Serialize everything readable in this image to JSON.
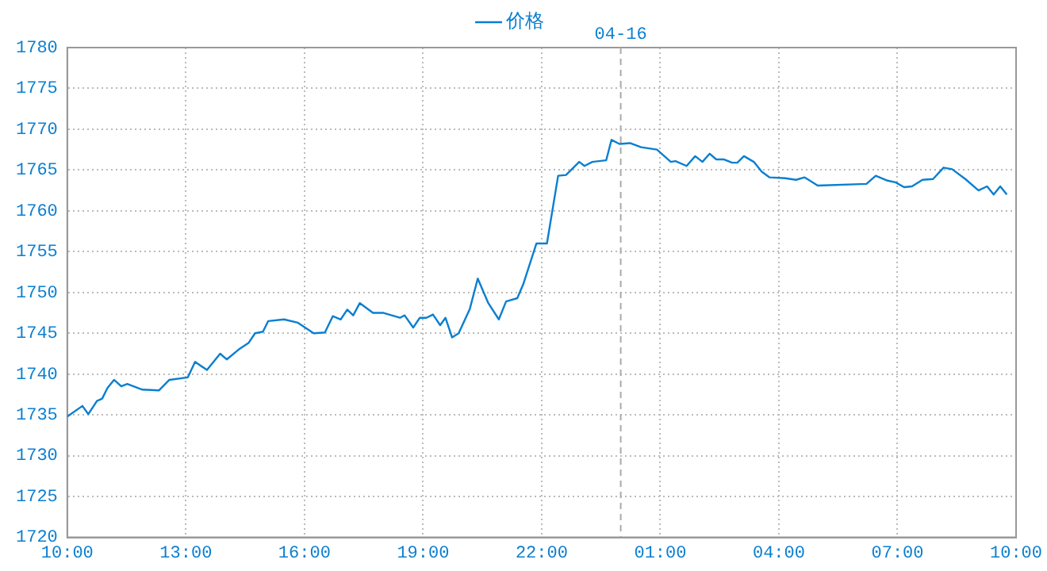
{
  "chart_data": {
    "type": "line",
    "legend": "top",
    "grid": true,
    "marker": "none",
    "line_style": "solid",
    "xlim": [
      "--04-15T10:00",
      "--04-16T10:00"
    ],
    "xticks": [
      {
        "value": "--04-15T10:00",
        "label": "10:00"
      },
      {
        "value": "--04-15T13:00",
        "label": "13:00"
      },
      {
        "value": "--04-15T16:00",
        "label": "16:00"
      },
      {
        "value": "--04-15T19:00",
        "label": "19:00"
      },
      {
        "value": "--04-15T22:00",
        "label": "22:00"
      },
      {
        "value": "--04-16T01:00",
        "label": "01:00"
      },
      {
        "value": "--04-16T04:00",
        "label": "04:00"
      },
      {
        "value": "--04-16T07:00",
        "label": "07:00"
      },
      {
        "value": "--04-16T10:00",
        "label": "10:00"
      }
    ],
    "ylim": [
      1720,
      1780
    ],
    "yticks": [
      1720,
      1725,
      1730,
      1735,
      1740,
      1745,
      1750,
      1755,
      1760,
      1765,
      1770,
      1775,
      1780
    ],
    "ref_lines": [
      {
        "axis": "x",
        "value": "--04-16T00:00",
        "label": "04-16",
        "color": "#aaaaaa",
        "line_style": "dashed"
      }
    ],
    "series": [
      {
        "name": "价格",
        "color": "#0a7fd0",
        "x": [
          "--04-15T10:00",
          "--04-15T10:23",
          "--04-15T10:32",
          "--04-15T10:45",
          "--04-15T10:53",
          "--04-15T11:01",
          "--04-15T11:11",
          "--04-15T11:22",
          "--04-15T11:31",
          "--04-15T11:54",
          "--04-15T12:19",
          "--04-15T12:35",
          "--04-15T13:03",
          "--04-15T13:14",
          "--04-15T13:32",
          "--04-15T13:52",
          "--04-15T14:02",
          "--04-15T14:20",
          "--04-15T14:35",
          "--04-15T14:45",
          "--04-15T14:57",
          "--04-15T15:05",
          "--04-15T15:29",
          "--04-15T15:50",
          "--04-15T16:14",
          "--04-15T16:31",
          "--04-15T16:43",
          "--04-15T16:55",
          "--04-15T17:05",
          "--04-15T17:14",
          "--04-15T17:24",
          "--04-15T17:44",
          "--04-15T18:00",
          "--04-15T18:25",
          "--04-15T18:32",
          "--04-15T18:45",
          "--04-15T18:55",
          "--04-15T19:05",
          "--04-15T19:15",
          "--04-15T19:26",
          "--04-15T19:34",
          "--04-15T19:44",
          "--04-15T19:54",
          "--04-15T20:11",
          "--04-15T20:23",
          "--04-15T20:39",
          "--04-15T20:55",
          "--04-15T21:06",
          "--04-15T21:23",
          "--04-15T21:32",
          "--04-15T21:52",
          "--04-15T22:08",
          "--04-15T22:25",
          "--04-15T22:37",
          "--04-15T22:57",
          "--04-15T23:05",
          "--04-15T23:17",
          "--04-15T23:38",
          "--04-15T23:46",
          "--04-15T23:58",
          "--04-16T00:14",
          "--04-16T00:31",
          "--04-16T00:55",
          "--04-16T01:16",
          "--04-16T01:23",
          "--04-16T01:40",
          "--04-16T01:53",
          "--04-16T02:04",
          "--04-16T02:15",
          "--04-16T02:25",
          "--04-16T02:37",
          "--04-16T02:49",
          "--04-16T02:57",
          "--04-16T03:07",
          "--04-16T03:22",
          "--04-16T03:34",
          "--04-16T03:46",
          "--04-16T04:10",
          "--04-16T04:26",
          "--04-16T04:39",
          "--04-16T04:59",
          "--04-16T06:13",
          "--04-16T06:27",
          "--04-16T06:45",
          "--04-16T06:57",
          "--04-16T07:10",
          "--04-16T07:22",
          "--04-16T07:38",
          "--04-16T07:54",
          "--04-16T08:10",
          "--04-16T08:23",
          "--04-16T08:43",
          "--04-16T09:03",
          "--04-16T09:16",
          "--04-16T09:26",
          "--04-16T09:36",
          "--04-16T09:46"
        ],
        "values": [
          1734.8,
          1736.1,
          1735.1,
          1736.7,
          1737.0,
          1738.3,
          1739.3,
          1738.5,
          1738.8,
          1738.1,
          1738.0,
          1739.3,
          1739.6,
          1741.5,
          1740.5,
          1742.5,
          1741.8,
          1743.0,
          1743.8,
          1745.0,
          1745.2,
          1746.5,
          1746.7,
          1746.3,
          1745.0,
          1745.1,
          1747.1,
          1746.7,
          1747.9,
          1747.2,
          1748.7,
          1747.5,
          1747.5,
          1746.9,
          1747.2,
          1745.7,
          1746.9,
          1746.9,
          1747.3,
          1746.0,
          1746.9,
          1744.5,
          1745.0,
          1748.0,
          1751.7,
          1748.7,
          1746.7,
          1748.9,
          1749.3,
          1751.0,
          1756.0,
          1756.0,
          1764.3,
          1764.4,
          1766.0,
          1765.5,
          1766.0,
          1766.2,
          1768.7,
          1768.2,
          1768.3,
          1767.8,
          1767.5,
          1766.0,
          1766.1,
          1765.5,
          1766.7,
          1766.0,
          1767.0,
          1766.3,
          1766.3,
          1765.9,
          1765.9,
          1766.7,
          1766.0,
          1764.8,
          1764.1,
          1764.0,
          1763.8,
          1764.1,
          1763.1,
          1763.3,
          1764.3,
          1763.7,
          1763.5,
          1762.9,
          1763.0,
          1763.8,
          1763.9,
          1765.3,
          1765.1,
          1763.9,
          1762.5,
          1763.0,
          1762.0,
          1763.0,
          1762.0
        ]
      }
    ]
  }
}
